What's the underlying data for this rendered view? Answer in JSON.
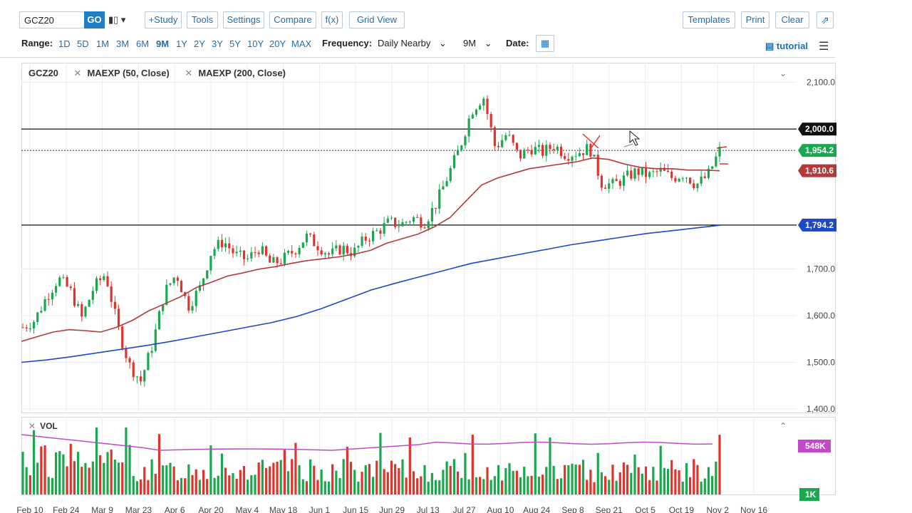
{
  "toolbar": {
    "symbol": "GCZ20",
    "go": "GO",
    "chart_type_icon": "candlestick-icon",
    "study": "+Study",
    "tools": "Tools",
    "settings": "Settings",
    "compare": "Compare",
    "fx": "f(x)",
    "grid_view": "Grid View",
    "templates": "Templates",
    "print": "Print",
    "clear": "Clear",
    "edit_icon": "edit-icon"
  },
  "range": {
    "label": "Range:",
    "options": [
      "1D",
      "5D",
      "1M",
      "3M",
      "6M",
      "9M",
      "1Y",
      "2Y",
      "3Y",
      "5Y",
      "10Y",
      "20Y",
      "MAX"
    ],
    "active": "9M"
  },
  "frequency": {
    "label": "Frequency:",
    "value": "Daily Nearby",
    "period": "9M"
  },
  "date": {
    "label": "Date:",
    "icon": "calendar-icon"
  },
  "tutorial": "tutorial",
  "legend": {
    "symbol": "GCZ20",
    "ma1": "MAEXP (50, Close)",
    "ma2": "MAEXP (200, Close)"
  },
  "volume": {
    "label": "VOL",
    "tag_high": "548K",
    "tag_low": "1K"
  },
  "colors": {
    "up": "#1aa84f",
    "down": "#e0332b",
    "ma50": "#b23a3a",
    "ma200": "#1f49c4",
    "vol_ma": "#c24ac9",
    "accent": "#1f6fb0"
  },
  "chart_data": {
    "type": "candlestick",
    "y_ticks": [
      "2,100.0",
      "1,700.0",
      "1,600.0",
      "1,500.0",
      "1,400.0"
    ],
    "ylim": [
      1400,
      2130
    ],
    "x_ticks": [
      "Feb 10",
      "Feb 24",
      "Mar 9",
      "Mar 23",
      "Apr 6",
      "Apr 20",
      "May 4",
      "May 18",
      "Jun 1",
      "Jun 15",
      "Jun 29",
      "Jul 13",
      "Jul 27",
      "Aug 10",
      "Aug 24",
      "Sep 8",
      "Sep 21",
      "Oct 5",
      "Oct 19",
      "Nov 2",
      "Nov 16"
    ],
    "price_tags": [
      {
        "label": "2,000.0",
        "value": 2000,
        "color": "#111111"
      },
      {
        "label": "1,954.2",
        "value": 1954.2,
        "color": "#1aa84f"
      },
      {
        "label": "1,910.6",
        "value": 1910.6,
        "color": "#b23a3a"
      },
      {
        "label": "1,794.2",
        "value": 1794.2,
        "color": "#1f49c4"
      }
    ],
    "horizontal_lines": [
      2000,
      1794.2
    ],
    "close_series": [
      1575,
      1590,
      1640,
      1680,
      1655,
      1595,
      1660,
      1690,
      1580,
      1495,
      1460,
      1540,
      1650,
      1690,
      1620,
      1660,
      1740,
      1760,
      1730,
      1720,
      1745,
      1710,
      1720,
      1740,
      1770,
      1750,
      1730,
      1745,
      1735,
      1765,
      1780,
      1800,
      1795,
      1810,
      1800,
      1840,
      1900,
      1960,
      2040,
      2070,
      1960,
      1990,
      1940,
      1960,
      1950,
      1965,
      1945,
      1950,
      1960,
      1885,
      1880,
      1895,
      1910,
      1900,
      1910,
      1895,
      1905,
      1880,
      1900,
      1954.2
    ],
    "ma50": [
      1545,
      1555,
      1565,
      1570,
      1568,
      1565,
      1575,
      1590,
      1610,
      1625,
      1640,
      1660,
      1672,
      1685,
      1692,
      1700,
      1705,
      1712,
      1718,
      1722,
      1726,
      1732,
      1740,
      1755,
      1765,
      1775,
      1790,
      1810,
      1845,
      1880,
      1895,
      1905,
      1915,
      1920,
      1925,
      1930,
      1938,
      1935,
      1925,
      1918,
      1915,
      1915,
      1912,
      1912,
      1910.6
    ],
    "ma200": [
      1500,
      1505,
      1512,
      1520,
      1528,
      1536,
      1545,
      1555,
      1565,
      1575,
      1585,
      1598,
      1615,
      1635,
      1655,
      1670,
      1684,
      1698,
      1712,
      1722,
      1732,
      1742,
      1752,
      1760,
      1768,
      1776,
      1782,
      1788,
      1794.2
    ]
  }
}
